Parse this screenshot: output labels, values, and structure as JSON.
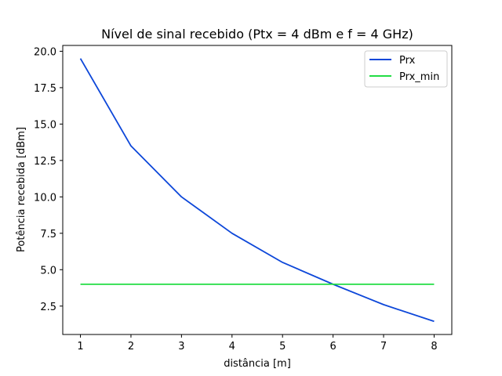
{
  "chart_data": {
    "type": "line",
    "title": "Nível de sinal recebido (Ptx = 4 dBm e f = 4 GHz)",
    "xlabel": "distância [m]",
    "ylabel": "Potência recebida [dBm]",
    "xlim": [
      0.65,
      8.35
    ],
    "ylim": [
      0.55,
      20.4
    ],
    "xticks": [
      1,
      2,
      3,
      4,
      5,
      6,
      7,
      8
    ],
    "xtick_labels": [
      "1",
      "2",
      "3",
      "4",
      "5",
      "6",
      "7",
      "8"
    ],
    "yticks": [
      2.5,
      5.0,
      7.5,
      10.0,
      12.5,
      15.0,
      17.5,
      20.0
    ],
    "ytick_labels": [
      "2.5",
      "5.0",
      "7.5",
      "10.0",
      "12.5",
      "15.0",
      "17.5",
      "20.0"
    ],
    "grid": false,
    "legend_position": "top-right",
    "x": [
      1,
      2,
      3,
      4,
      5,
      6,
      7,
      8
    ],
    "series": [
      {
        "name": "Prx",
        "color": "#0d47d9",
        "values": [
          19.5,
          13.5,
          10.0,
          7.5,
          5.5,
          4.0,
          2.6,
          1.45
        ]
      },
      {
        "name": "Prx_min",
        "color": "#22dd44",
        "values": [
          4.0,
          4.0,
          4.0,
          4.0,
          4.0,
          4.0,
          4.0,
          4.0
        ]
      }
    ]
  }
}
